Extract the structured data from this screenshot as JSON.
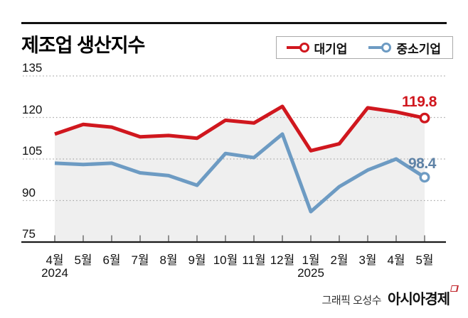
{
  "title": "제조업 생산지수",
  "legend": [
    {
      "label": "대기업",
      "color": "#d0171e"
    },
    {
      "label": "중소기업",
      "color": "#6d9bc3"
    }
  ],
  "source": {
    "prefix": "그래픽 오성수",
    "brand": "아시아경제"
  },
  "chart_data": {
    "type": "line",
    "title": "제조업 생산지수",
    "categories": [
      "4월",
      "5월",
      "6월",
      "7월",
      "8월",
      "9월",
      "10월",
      "11월",
      "12월",
      "1월",
      "2월",
      "3월",
      "4월",
      "5월"
    ],
    "year_markers": [
      {
        "index": 0,
        "label": "2024"
      },
      {
        "index": 9,
        "label": "2025"
      }
    ],
    "series": [
      {
        "name": "대기업",
        "color": "#d0171e",
        "label_color": "#d0171e",
        "values": [
          114,
          117.5,
          116.5,
          113,
          113.5,
          112.5,
          119,
          118,
          124,
          108,
          110.5,
          123.5,
          122,
          119.8
        ],
        "end_label": "119.8",
        "area_fill": true
      },
      {
        "name": "중소기업",
        "color": "#6d9bc3",
        "label_color": "#5e82a6",
        "values": [
          103.5,
          103,
          103.5,
          100,
          99,
          95.5,
          107,
          105.5,
          114,
          86,
          95,
          101,
          105,
          98.4
        ],
        "end_label": "98.4",
        "area_fill": false
      }
    ],
    "ylim": [
      75,
      135
    ],
    "yticks": [
      75,
      90,
      105,
      120,
      135
    ],
    "grid": "dotted horizontal",
    "legend_position": "top-right",
    "colors": {
      "grid": "#a6a6a6",
      "axis": "#1a1a1a",
      "area_fill": "#efefef",
      "tick": "#777777"
    }
  }
}
